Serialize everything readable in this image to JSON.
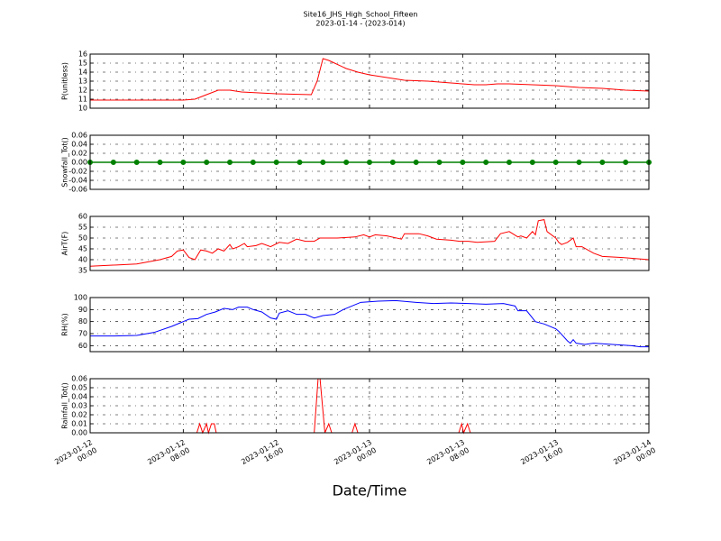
{
  "chart_data": [
    {
      "type": "line",
      "title": "Site16_JHS_High_School_Fifteen",
      "subtitle": "2023-01-14 - (2023-014)",
      "ylabel": "P(unitless)",
      "ylim": [
        10,
        16
      ],
      "yticks": [
        10,
        11,
        12,
        13,
        14,
        15,
        16
      ],
      "grid": true,
      "x": [
        "2023-01-12 00:00",
        "2023-01-12 04:00",
        "2023-01-12 08:00",
        "2023-01-12 09:00",
        "2023-01-12 10:00",
        "2023-01-12 11:00",
        "2023-01-12 12:00",
        "2023-01-12 13:00",
        "2023-01-12 16:00",
        "2023-01-12 19:00",
        "2023-01-12 19:30",
        "2023-01-12 20:00",
        "2023-01-12 20:30",
        "2023-01-12 21:00",
        "2023-01-12 22:00",
        "2023-01-12 23:00",
        "2023-01-13 00:00",
        "2023-01-13 01:00",
        "2023-01-13 02:00",
        "2023-01-13 03:00",
        "2023-01-13 05:00",
        "2023-01-13 07:00",
        "2023-01-13 09:00",
        "2023-01-13 10:00",
        "2023-01-13 11:00",
        "2023-01-13 12:00",
        "2023-01-13 14:00",
        "2023-01-13 16:00",
        "2023-01-13 18:00",
        "2023-01-13 20:00",
        "2023-01-13 22:00",
        "2023-01-14 00:00"
      ],
      "series": [
        {
          "color": "#ff0000",
          "values": [
            10.9,
            10.9,
            10.9,
            11.0,
            11.5,
            12.0,
            12.0,
            11.8,
            11.6,
            11.5,
            13.0,
            15.5,
            15.3,
            15.0,
            14.4,
            14.0,
            13.7,
            13.5,
            13.3,
            13.1,
            13.0,
            12.8,
            12.6,
            12.6,
            12.7,
            12.7,
            12.6,
            12.5,
            12.3,
            12.2,
            12.0,
            11.9
          ]
        }
      ]
    },
    {
      "type": "line",
      "ylabel": "Snowfall_Tot()",
      "ylim": [
        -0.06,
        0.06
      ],
      "yticks": [
        -0.06,
        -0.04,
        -0.02,
        {
          "value": 0,
          "label": "0.00"
        },
        0.02,
        0.04,
        0.06
      ],
      "grid": true,
      "x": [
        "2023-01-12 00:00",
        "2023-01-12 02:00",
        "2023-01-12 04:00",
        "2023-01-12 06:00",
        "2023-01-12 08:00",
        "2023-01-12 10:00",
        "2023-01-12 12:00",
        "2023-01-12 14:00",
        "2023-01-12 16:00",
        "2023-01-12 18:00",
        "2023-01-12 20:00",
        "2023-01-12 22:00",
        "2023-01-13 00:00",
        "2023-01-13 02:00",
        "2023-01-13 04:00",
        "2023-01-13 06:00",
        "2023-01-13 08:00",
        "2023-01-13 10:00",
        "2023-01-13 12:00",
        "2023-01-13 14:00",
        "2023-01-13 16:00",
        "2023-01-13 18:00",
        "2023-01-13 20:00",
        "2023-01-13 22:00",
        "2023-01-14 00:00"
      ],
      "series": [
        {
          "color": "#008000",
          "marker": "o",
          "values": [
            0,
            0,
            0,
            0,
            0,
            0,
            0,
            0,
            0,
            0,
            0,
            0,
            0,
            0,
            0,
            0,
            0,
            0,
            0,
            0,
            0,
            0,
            0,
            0,
            0
          ]
        }
      ]
    },
    {
      "type": "line",
      "ylabel": "AirT(F)",
      "ylim": [
        35,
        60
      ],
      "yticks": [
        35,
        40,
        45,
        50,
        55,
        60
      ],
      "grid": true,
      "x": [
        "2023-01-12 00:00",
        "2023-01-12 04:00",
        "2023-01-12 06:00",
        "2023-01-12 07:00",
        "2023-01-12 07:30",
        "2023-01-12 08:00",
        "2023-01-12 08:30",
        "2023-01-12 09:00",
        "2023-01-12 09:30",
        "2023-01-12 10:00",
        "2023-01-12 10:30",
        "2023-01-12 11:00",
        "2023-01-12 11:30",
        "2023-01-12 12:00",
        "2023-01-12 12:15",
        "2023-01-12 12:45",
        "2023-01-12 13:15",
        "2023-01-12 13:30",
        "2023-01-12 14:15",
        "2023-01-12 14:45",
        "2023-01-12 15:30",
        "2023-01-12 16:15",
        "2023-01-12 17:00",
        "2023-01-12 17:45",
        "2023-01-12 18:30",
        "2023-01-12 19:15",
        "2023-01-12 19:45",
        "2023-01-12 21:15",
        "2023-01-12 22:45",
        "2023-01-12 23:30",
        "2023-01-13 00:00",
        "2023-01-13 00:30",
        "2023-01-13 01:30",
        "2023-01-13 02:45",
        "2023-01-13 03:00",
        "2023-01-13 04:15",
        "2023-01-13 05:00",
        "2023-01-13 05:45",
        "2023-01-13 07:00",
        "2023-01-13 07:45",
        "2023-01-13 08:30",
        "2023-01-13 09:15",
        "2023-01-13 10:45",
        "2023-01-13 11:15",
        "2023-01-13 12:00",
        "2023-01-13 12:45",
        "2023-01-13 13:00",
        "2023-01-13 13:30",
        "2023-01-13 14:00",
        "2023-01-13 14:15",
        "2023-01-13 14:30",
        "2023-01-13 15:00",
        "2023-01-13 15:15",
        "2023-01-13 16:00",
        "2023-01-13 16:15",
        "2023-01-13 16:30",
        "2023-01-13 17:00",
        "2023-01-13 17:30",
        "2023-01-13 17:45",
        "2023-01-13 18:15",
        "2023-01-13 19:15",
        "2023-01-13 20:00",
        "2023-01-13 21:45",
        "2023-01-14 00:00"
      ],
      "series": [
        {
          "color": "#ff0000",
          "values": [
            37,
            38,
            40,
            41.5,
            44,
            44.5,
            41,
            40,
            44.5,
            44,
            43,
            45,
            44,
            47,
            45,
            46,
            47.5,
            46,
            46.5,
            47.5,
            46,
            48,
            47.5,
            49.5,
            48.5,
            48.5,
            50,
            50,
            50.5,
            51.5,
            50.5,
            51.5,
            51,
            49.5,
            52,
            52,
            51,
            49.5,
            49,
            48.5,
            48.5,
            48,
            48.5,
            52,
            53,
            50.5,
            51,
            50,
            53,
            51.5,
            58,
            58.5,
            53,
            50,
            48,
            47,
            48,
            50,
            46,
            46,
            43,
            41.5,
            41,
            40
          ]
        }
      ]
    },
    {
      "type": "line",
      "ylabel": "RH(%)",
      "ylim": [
        55,
        100
      ],
      "yticks": [
        60,
        70,
        80,
        90,
        100
      ],
      "grid": true,
      "x": [
        "2023-01-12 00:00",
        "2023-01-12 02:00",
        "2023-01-12 04:00",
        "2023-01-12 05:30",
        "2023-01-12 07:00",
        "2023-01-12 07:45",
        "2023-01-12 08:00",
        "2023-01-12 08:30",
        "2023-01-12 09:15",
        "2023-01-12 10:00",
        "2023-01-12 10:45",
        "2023-01-12 11:30",
        "2023-01-12 12:15",
        "2023-01-12 12:45",
        "2023-01-12 13:30",
        "2023-01-12 14:00",
        "2023-01-12 14:45",
        "2023-01-12 15:30",
        "2023-01-12 16:00",
        "2023-01-12 16:15",
        "2023-01-12 17:00",
        "2023-01-12 17:45",
        "2023-01-12 18:30",
        "2023-01-12 19:15",
        "2023-01-12 20:00",
        "2023-01-12 21:00",
        "2023-01-12 21:45",
        "2023-01-12 22:30",
        "2023-01-12 23:15",
        "2023-01-13 00:45",
        "2023-01-13 02:15",
        "2023-01-13 04:00",
        "2023-01-13 05:30",
        "2023-01-13 07:00",
        "2023-01-13 08:30",
        "2023-01-13 10:00",
        "2023-01-13 11:30",
        "2023-01-13 12:30",
        "2023-01-13 12:45",
        "2023-01-13 13:30",
        "2023-01-13 14:15",
        "2023-01-13 15:00",
        "2023-01-13 16:00",
        "2023-01-13 16:15",
        "2023-01-13 17:00",
        "2023-01-13 17:15",
        "2023-01-13 17:30",
        "2023-01-13 17:45",
        "2023-01-13 18:30",
        "2023-01-13 19:15",
        "2023-01-13 22:30",
        "2023-01-13 23:15",
        "2023-01-14 00:00"
      ],
      "series": [
        {
          "color": "#0000ff",
          "values": [
            68,
            68,
            68.5,
            71,
            76,
            79,
            80,
            82,
            82.5,
            86,
            88,
            91,
            90,
            92,
            92,
            90,
            88,
            83,
            82,
            87,
            89,
            86,
            86,
            83,
            85,
            86,
            90,
            93,
            96,
            97,
            97.5,
            96,
            95,
            95.5,
            95,
            94.5,
            95,
            93,
            89,
            89,
            80,
            78,
            74,
            72,
            64,
            62,
            65,
            62,
            61,
            62,
            60,
            59,
            59
          ]
        }
      ]
    },
    {
      "type": "line",
      "ylabel": "Rainfall_Tot()",
      "xlabel": "Date/Time",
      "ylim": [
        0,
        0.06
      ],
      "yticks": [
        {
          "value": 0,
          "label": "0.00"
        },
        0.01,
        0.02,
        0.03,
        0.04,
        0.05,
        0.06
      ],
      "grid": true,
      "xlim": [
        "2023-01-12 00:00",
        "2023-01-14 00:00"
      ],
      "xticks": [
        {
          "value": "2023-01-12 00:00",
          "label": "2023-01-12\n00:00"
        },
        {
          "value": "2023-01-12 08:00",
          "label": "2023-01-12\n08:00"
        },
        {
          "value": "2023-01-12 16:00",
          "label": "2023-01-12\n16:00"
        },
        {
          "value": "2023-01-13 00:00",
          "label": "2023-01-13\n00:00"
        },
        {
          "value": "2023-01-13 08:00",
          "label": "2023-01-13\n08:00"
        },
        {
          "value": "2023-01-13 16:00",
          "label": "2023-01-13\n16:00"
        },
        {
          "value": "2023-01-14 00:00",
          "label": "2023-01-14\n00:00"
        }
      ],
      "x": [
        "2023-01-12 00:00",
        "2023-01-12 09:10",
        "2023-01-12 09:25",
        "2023-01-12 09:40",
        "2023-01-12 10:00",
        "2023-01-12 10:10",
        "2023-01-12 10:25",
        "2023-01-12 10:40",
        "2023-01-12 10:50",
        "2023-01-12 19:15",
        "2023-01-12 19:35",
        "2023-01-12 19:45",
        "2023-01-12 20:10",
        "2023-01-12 20:30",
        "2023-01-12 20:45",
        "2023-01-12 22:30",
        "2023-01-12 22:45",
        "2023-01-12 23:00",
        "2023-01-13 07:40",
        "2023-01-13 07:55",
        "2023-01-13 08:05",
        "2023-01-13 08:25",
        "2023-01-13 08:40",
        "2023-01-14 00:00"
      ],
      "series": [
        {
          "color": "#ff0000",
          "values": [
            0,
            0,
            0.01,
            0,
            0.01,
            0,
            0.01,
            0.01,
            0,
            0,
            0.06,
            0.06,
            0,
            0.01,
            0,
            0,
            0.01,
            0,
            0,
            0.01,
            0,
            0.01,
            0,
            0
          ]
        }
      ]
    }
  ]
}
